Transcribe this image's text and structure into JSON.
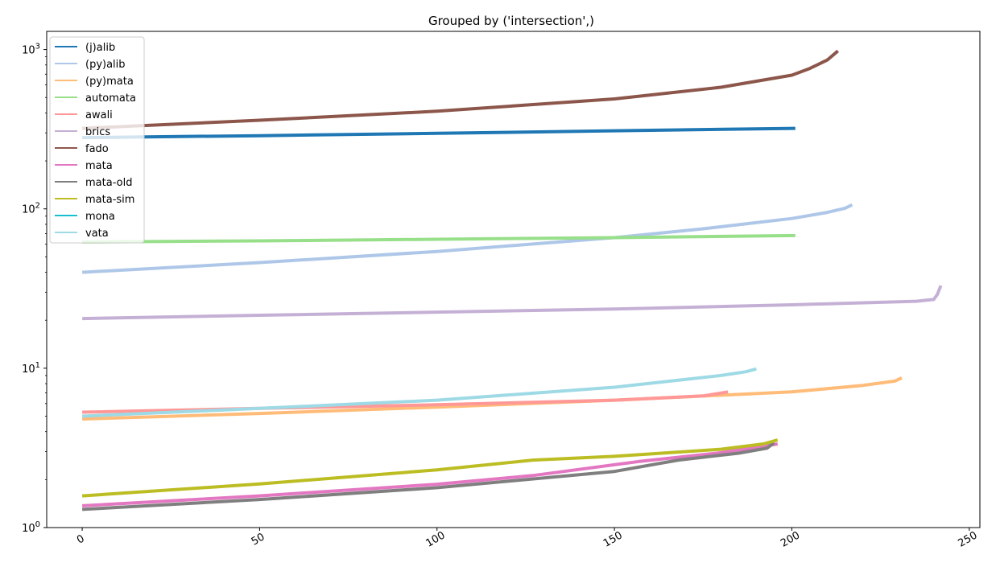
{
  "chart_data": {
    "type": "line",
    "title": "Grouped by ('intersection',)",
    "xlabel": "",
    "ylabel": "",
    "xlim": [
      -10,
      253
    ],
    "ylim": [
      1,
      1300
    ],
    "yscale": "log",
    "xticks": [
      0,
      50,
      100,
      150,
      200,
      250
    ],
    "xtick_labels": [
      "0",
      "50",
      "100",
      "150",
      "200",
      "250"
    ],
    "yticks": [
      1,
      10,
      100,
      1000
    ],
    "ytick_labels": [
      {
        "base": "10",
        "exp": "0"
      },
      {
        "base": "10",
        "exp": "1"
      },
      {
        "base": "10",
        "exp": "2"
      },
      {
        "base": "10",
        "exp": "3"
      }
    ],
    "grid": false,
    "legend_position": "top-left",
    "series": [
      {
        "name": "(j)alib",
        "color": "#1f77b4",
        "x": [
          0,
          50,
          100,
          150,
          201
        ],
        "y": [
          280,
          288,
          298,
          309,
          320
        ]
      },
      {
        "name": "(py)alib",
        "color": "#aec7e8",
        "x": [
          0,
          50,
          100,
          150,
          175,
          200,
          210,
          215,
          217
        ],
        "y": [
          40,
          46,
          54,
          66,
          75,
          87,
          95,
          101,
          106
        ]
      },
      {
        "name": "(py)mata",
        "color": "#ffbb78",
        "x": [
          0,
          50,
          100,
          150,
          200,
          220,
          229,
          231
        ],
        "y": [
          4.8,
          5.2,
          5.7,
          6.3,
          7.1,
          7.8,
          8.3,
          8.7
        ]
      },
      {
        "name": "automata",
        "color": "#98df8a",
        "x": [
          0,
          50,
          100,
          150,
          201
        ],
        "y": [
          62,
          63,
          64.5,
          66,
          68
        ]
      },
      {
        "name": "awali",
        "color": "#ff9896",
        "x": [
          0,
          50,
          100,
          150,
          175,
          182
        ],
        "y": [
          5.3,
          5.6,
          5.9,
          6.3,
          6.7,
          7.1
        ]
      },
      {
        "name": "brics",
        "color": "#c5b0d5",
        "x": [
          0,
          50,
          100,
          150,
          200,
          235,
          240,
          241,
          242
        ],
        "y": [
          20.5,
          21.5,
          22.5,
          23.5,
          25,
          26.3,
          27,
          29,
          33
        ]
      },
      {
        "name": "fado",
        "color": "#8c564b",
        "x": [
          0,
          50,
          100,
          150,
          180,
          200,
          205,
          210,
          213
        ],
        "y": [
          320,
          360,
          410,
          490,
          580,
          690,
          760,
          860,
          980
        ]
      },
      {
        "name": "mata",
        "color": "#e377c2",
        "x": [
          0,
          50,
          100,
          127,
          157,
          180,
          196
        ],
        "y": [
          1.37,
          1.58,
          1.87,
          2.12,
          2.6,
          2.95,
          3.35
        ]
      },
      {
        "name": "mata-old",
        "color": "#7f7f7f",
        "x": [
          0,
          50,
          100,
          150,
          168,
          185,
          193,
          195
        ],
        "y": [
          1.3,
          1.5,
          1.78,
          2.25,
          2.65,
          2.93,
          3.15,
          3.4
        ]
      },
      {
        "name": "mata-sim",
        "color": "#bcbd22",
        "x": [
          0,
          50,
          100,
          127,
          150,
          180,
          192,
          196
        ],
        "y": [
          1.58,
          1.88,
          2.3,
          2.65,
          2.8,
          3.1,
          3.35,
          3.55
        ]
      },
      {
        "name": "mona",
        "color": "#17becf",
        "x": [],
        "y": []
      },
      {
        "name": "vata",
        "color": "#9edae5",
        "x": [
          0,
          50,
          100,
          150,
          180,
          187,
          190
        ],
        "y": [
          5.0,
          5.6,
          6.3,
          7.6,
          9.0,
          9.5,
          9.9
        ]
      }
    ]
  }
}
